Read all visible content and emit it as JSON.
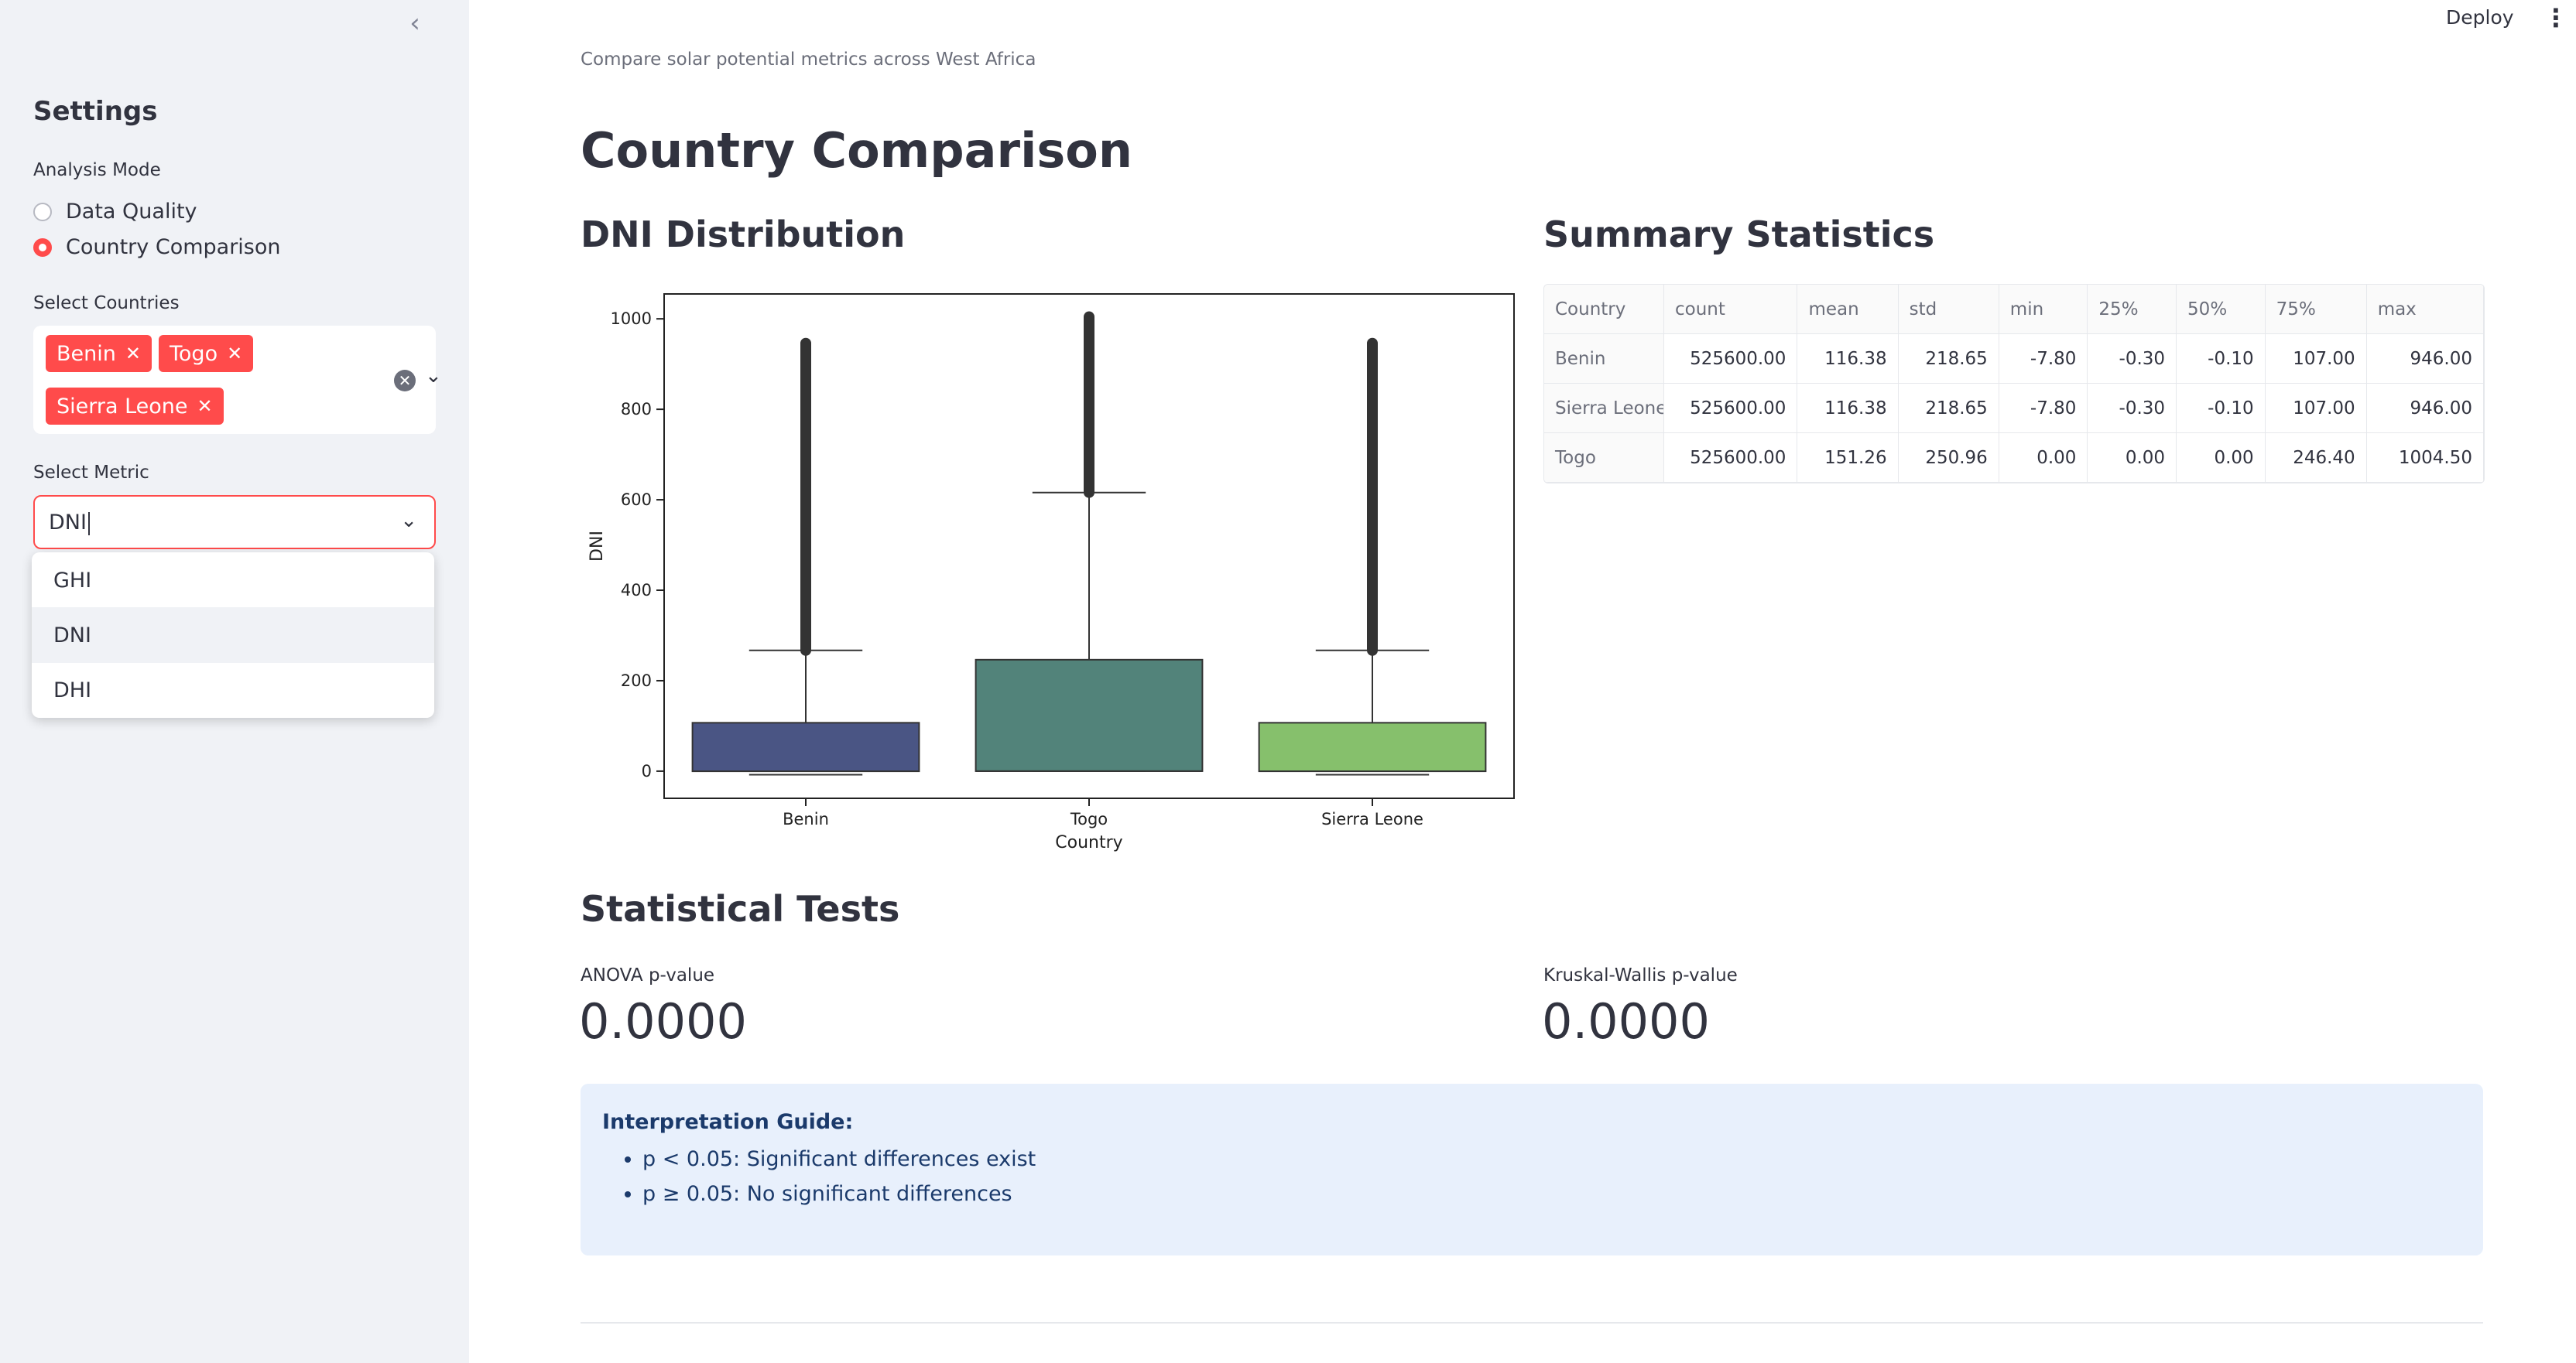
{
  "sidebar": {
    "collapse_icon": "chevron-left-icon",
    "title": "Settings",
    "analysis_mode_label": "Analysis Mode",
    "modes": [
      {
        "label": "Data Quality",
        "selected": false
      },
      {
        "label": "Country Comparison",
        "selected": true
      }
    ],
    "countries_label": "Select Countries",
    "countries": [
      "Benin",
      "Togo",
      "Sierra Leone"
    ],
    "metric_label": "Select Metric",
    "metric_value": "DNI",
    "metric_options": [
      "GHI",
      "DNI",
      "DHI"
    ],
    "highlighted_option": "DNI"
  },
  "topbar": {
    "deploy_label": "Deploy",
    "menu_icon": "kebab-menu-icon"
  },
  "main": {
    "caption": "Compare solar potential metrics across West Africa",
    "title": "Country Comparison",
    "chart_heading": "DNI Distribution",
    "summary_heading": "Summary Statistics",
    "tests_heading": "Statistical Tests",
    "anova_label": "ANOVA p-value",
    "anova_value": "0.0000",
    "kruskal_label": "Kruskal-Wallis p-value",
    "kruskal_value": "0.0000",
    "guide_title": "Interpretation Guide:",
    "guide_items": [
      "p < 0.05: Significant differences exist",
      "p ≥ 0.05: No significant differences"
    ]
  },
  "summary_table": {
    "columns": [
      "Country",
      "count",
      "mean",
      "std",
      "min",
      "25%",
      "50%",
      "75%",
      "max"
    ],
    "rows": [
      [
        "Benin",
        "525600.00",
        "116.38",
        "218.65",
        "-7.80",
        "-0.30",
        "-0.10",
        "107.00",
        "946.00"
      ],
      [
        "Sierra Leone",
        "525600.00",
        "116.38",
        "218.65",
        "-7.80",
        "-0.30",
        "-0.10",
        "107.00",
        "946.00"
      ],
      [
        "Togo",
        "525600.00",
        "151.26",
        "250.96",
        "0.00",
        "0.00",
        "0.00",
        "246.40",
        "1004.50"
      ]
    ]
  },
  "chart_data": {
    "type": "box",
    "title": "",
    "xlabel": "Country",
    "ylabel": "DNI",
    "ylim": [
      -60,
      1055
    ],
    "yticks": [
      0,
      200,
      400,
      600,
      800,
      1000
    ],
    "categories": [
      "Benin",
      "Togo",
      "Sierra Leone"
    ],
    "colors": [
      "#4a5584",
      "#52837a",
      "#86c06c"
    ],
    "boxes": [
      {
        "category": "Benin",
        "min": -7.8,
        "q1": -0.3,
        "median": -0.1,
        "q3": 107.0,
        "whisker_high": 267,
        "max": 946.0
      },
      {
        "category": "Togo",
        "min": 0.0,
        "q1": 0.0,
        "median": 0.0,
        "q3": 246.4,
        "whisker_high": 616,
        "max": 1004.5
      },
      {
        "category": "Sierra Leone",
        "min": -7.8,
        "q1": -0.3,
        "median": -0.1,
        "q3": 107.0,
        "whisker_high": 267,
        "max": 946.0
      }
    ]
  }
}
